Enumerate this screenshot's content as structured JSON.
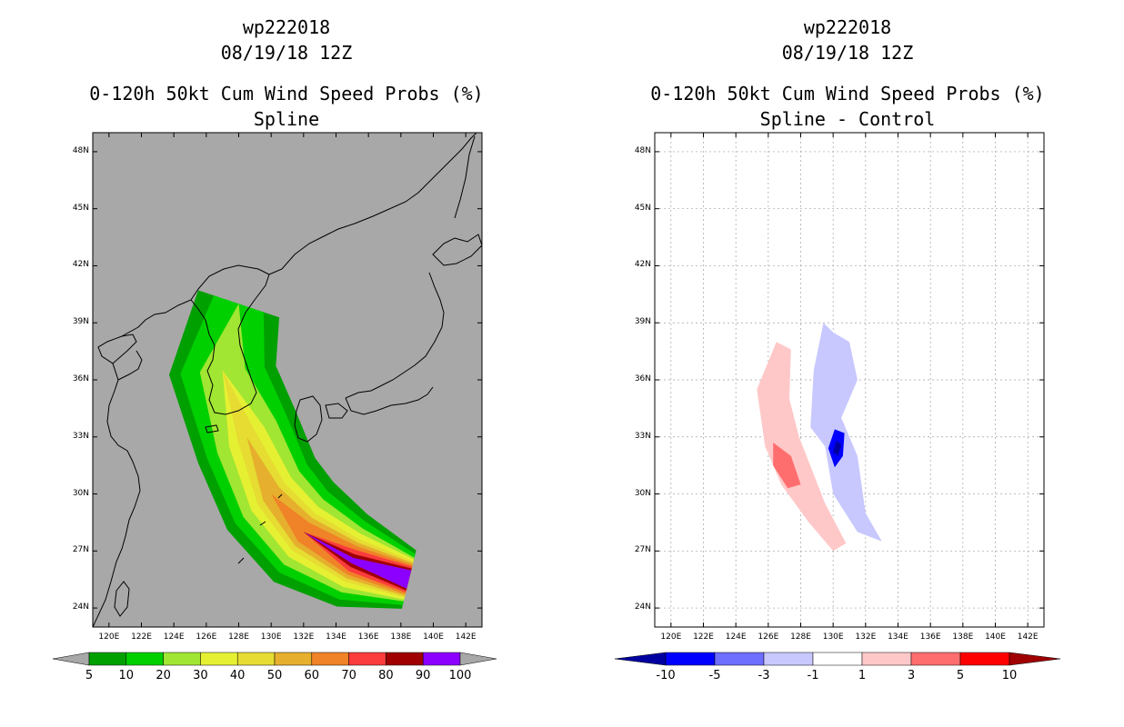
{
  "panels": [
    {
      "title_line1": "wp222018",
      "title_line2": "08/19/18 12Z",
      "title_line3": "0-120h 50kt Cum Wind Speed Probs (%)",
      "title_line4": "Spline"
    },
    {
      "title_line1": "wp222018",
      "title_line2": "08/19/18 12Z",
      "title_line3": "0-120h 50kt Cum Wind Speed Probs (%)",
      "title_line4": "Spline - Control"
    }
  ],
  "colors": {
    "land_bg": "#a8a8a8",
    "prob": [
      "#00a000",
      "#00d000",
      "#a0e632",
      "#e6f032",
      "#e6dc32",
      "#e6af2d",
      "#f08228",
      "#fa3c3c",
      "#a00000",
      "#8c00ff"
    ],
    "diff": [
      "#0000a0",
      "#0000ff",
      "#6e6eff",
      "#c8c8ff",
      "#ffffff",
      "#ffc8c8",
      "#ff6e6e",
      "#ff0000",
      "#a00000"
    ]
  },
  "chart_data": [
    {
      "type": "heatmap",
      "title": "0-120h 50kt Cum Wind Speed Probs (%)",
      "subtitle": "Spline",
      "x_ticks": [
        "120E",
        "122E",
        "124E",
        "126E",
        "128E",
        "130E",
        "132E",
        "134E",
        "136E",
        "138E",
        "140E",
        "142E"
      ],
      "y_ticks": [
        "48N",
        "45N",
        "42N",
        "39N",
        "36N",
        "33N",
        "30N",
        "27N",
        "24N"
      ],
      "xlim": [
        119,
        143
      ],
      "ylim": [
        23,
        49
      ],
      "colorbar_labels": [
        "5",
        "10",
        "20",
        "30",
        "40",
        "50",
        "60",
        "70",
        "80",
        "90",
        "100"
      ],
      "track_center": [
        [
          138.5,
          25.5
        ],
        [
          135,
          26.5
        ],
        [
          132,
          28
        ],
        [
          130,
          30
        ],
        [
          128.5,
          33
        ],
        [
          127,
          36.5
        ],
        [
          128,
          40
        ]
      ],
      "contours": [
        {
          "level": 5,
          "widths_deg": [
            1.6,
            2.6,
            3.2,
            3.3,
            3.3,
            3.3,
            2.6
          ]
        },
        {
          "level": 10,
          "widths_deg": [
            1.4,
            2.2,
            2.6,
            2.7,
            2.7,
            2.6,
            1.6
          ]
        },
        {
          "level": 20,
          "widths_deg": [
            1.2,
            1.8,
            2.1,
            2.1,
            2.0,
            1.4,
            0
          ]
        },
        {
          "level": 30,
          "widths_deg": [
            1.1,
            1.5,
            1.6,
            1.5,
            1.2,
            0,
            0
          ]
        },
        {
          "level": 40,
          "widths_deg": [
            1.0,
            1.2,
            1.2,
            1.0,
            0.6,
            0,
            0
          ]
        },
        {
          "level": 50,
          "widths_deg": [
            0.9,
            1.0,
            0.9,
            0.6,
            0,
            0,
            0
          ]
        },
        {
          "level": 60,
          "widths_deg": [
            0.8,
            0.8,
            0.6,
            0,
            0,
            0,
            0
          ]
        },
        {
          "level": 70,
          "widths_deg": [
            0.7,
            0.6,
            0,
            0,
            0,
            0,
            0
          ]
        },
        {
          "level": 80,
          "widths_deg": [
            0.6,
            0.35,
            0,
            0,
            0,
            0,
            0
          ]
        },
        {
          "level": 90,
          "widths_deg": [
            0.5,
            0.15,
            0,
            0,
            0,
            0,
            0
          ]
        }
      ]
    },
    {
      "type": "heatmap",
      "title": "0-120h 50kt Cum Wind Speed Probs (%)",
      "subtitle": "Spline - Control",
      "x_ticks": [
        "120E",
        "122E",
        "124E",
        "126E",
        "128E",
        "130E",
        "132E",
        "134E",
        "136E",
        "138E",
        "140E",
        "142E"
      ],
      "y_ticks": [
        "48N",
        "45N",
        "42N",
        "39N",
        "36N",
        "33N",
        "30N",
        "27N",
        "24N"
      ],
      "xlim": [
        119,
        143
      ],
      "ylim": [
        23,
        49
      ],
      "colorbar_labels": [
        "-10",
        "-5",
        "-3",
        "-1",
        "1",
        "3",
        "5",
        "10"
      ],
      "regions": [
        {
          "value": -3,
          "poly": [
            [
              130,
              38.5
            ],
            [
              131,
              38
            ],
            [
              131.5,
              36
            ],
            [
              130.5,
              34
            ],
            [
              131.5,
              32
            ],
            [
              132,
              29
            ],
            [
              133,
              27.5
            ],
            [
              131.5,
              28
            ],
            [
              130,
              30
            ],
            [
              129.5,
              32.5
            ],
            [
              128.6,
              33.5
            ],
            [
              128.8,
              36.5
            ],
            [
              129.4,
              39
            ]
          ]
        },
        {
          "value": -5,
          "poly": [
            [
              130.1,
              33.4
            ],
            [
              130.7,
              33.2
            ],
            [
              130.6,
              32
            ],
            [
              130.1,
              31.4
            ],
            [
              129.7,
              32.4
            ]
          ]
        },
        {
          "value": -10,
          "poly": [
            [
              130.2,
              32.8
            ],
            [
              130.5,
              32.6
            ],
            [
              130.3,
              32
            ],
            [
              130,
              32.2
            ]
          ]
        },
        {
          "value": 3,
          "poly": [
            [
              126.5,
              38
            ],
            [
              127.4,
              37.6
            ],
            [
              127.3,
              35
            ],
            [
              127.9,
              33
            ],
            [
              129.5,
              29.5
            ],
            [
              130.8,
              27.4
            ],
            [
              130,
              27
            ],
            [
              128.5,
              28.5
            ],
            [
              126.8,
              30.5
            ],
            [
              125.8,
              32.5
            ],
            [
              125.3,
              35.5
            ]
          ]
        },
        {
          "value": 5,
          "poly": [
            [
              126.3,
              32.7
            ],
            [
              127.4,
              32
            ],
            [
              128,
              30.5
            ],
            [
              127.2,
              30.3
            ],
            [
              126.3,
              31.5
            ]
          ]
        }
      ]
    }
  ]
}
